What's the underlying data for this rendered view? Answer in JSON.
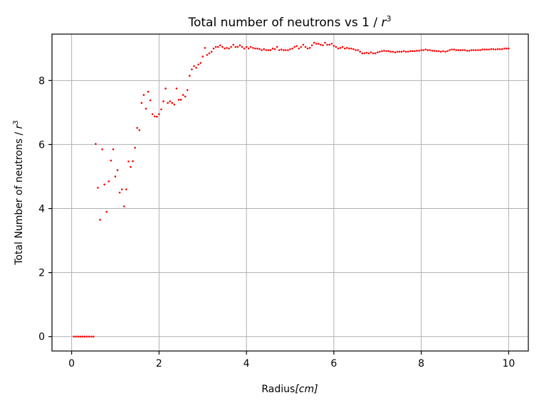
{
  "chart_data": {
    "type": "scatter",
    "title_prefix": "Total number of neutrons vs 1 / ",
    "title_var": "r",
    "title_exp": "3",
    "xlabel_prefix": "Radius",
    "xlabel_unit": "[cm]",
    "ylabel_prefix": "Total Number of neutrons / ",
    "ylabel_var": "r",
    "ylabel_exp": "3",
    "xlim": [
      -0.45,
      10.45
    ],
    "ylim": [
      -0.45,
      9.45
    ],
    "xticks": [
      0,
      2,
      4,
      6,
      8,
      10
    ],
    "xtick_labels": [
      "0",
      "2",
      "4",
      "6",
      "8",
      "10"
    ],
    "yticks": [
      0,
      2,
      4,
      6,
      8
    ],
    "ytick_labels": [
      "0",
      "2",
      "4",
      "6",
      "8"
    ],
    "grid": true,
    "series": [
      {
        "color": "#ff0000",
        "points": [
          [
            0.05,
            0
          ],
          [
            0.1,
            0
          ],
          [
            0.15,
            0
          ],
          [
            0.2,
            0
          ],
          [
            0.25,
            0
          ],
          [
            0.3,
            0
          ],
          [
            0.35,
            0
          ],
          [
            0.4,
            0
          ],
          [
            0.45,
            0
          ],
          [
            0.5,
            0
          ],
          [
            0.55,
            6.02
          ],
          [
            0.6,
            4.65
          ],
          [
            0.65,
            3.65
          ],
          [
            0.7,
            5.85
          ],
          [
            0.75,
            4.75
          ],
          [
            0.8,
            3.9
          ],
          [
            0.85,
            4.85
          ],
          [
            0.9,
            5.5
          ],
          [
            0.95,
            5.85
          ],
          [
            1.0,
            5.0
          ],
          [
            1.05,
            5.2
          ],
          [
            1.1,
            4.5
          ],
          [
            1.15,
            4.6
          ],
          [
            1.2,
            4.07
          ],
          [
            1.25,
            4.6
          ],
          [
            1.3,
            5.47
          ],
          [
            1.35,
            5.3
          ],
          [
            1.4,
            5.48
          ],
          [
            1.45,
            5.9
          ],
          [
            1.5,
            6.52
          ],
          [
            1.55,
            6.45
          ],
          [
            1.6,
            7.3
          ],
          [
            1.65,
            7.55
          ],
          [
            1.7,
            7.12
          ],
          [
            1.75,
            7.65
          ],
          [
            1.8,
            7.38
          ],
          [
            1.85,
            6.95
          ],
          [
            1.9,
            6.88
          ],
          [
            1.95,
            6.87
          ],
          [
            2.0,
            6.95
          ],
          [
            2.05,
            7.1
          ],
          [
            2.1,
            7.35
          ],
          [
            2.15,
            7.75
          ],
          [
            2.2,
            7.3
          ],
          [
            2.25,
            7.35
          ],
          [
            2.3,
            7.3
          ],
          [
            2.35,
            7.25
          ],
          [
            2.4,
            7.75
          ],
          [
            2.45,
            7.4
          ],
          [
            2.5,
            7.4
          ],
          [
            2.55,
            7.55
          ],
          [
            2.6,
            7.5
          ],
          [
            2.65,
            7.7
          ],
          [
            2.7,
            8.15
          ],
          [
            2.75,
            8.35
          ],
          [
            2.8,
            8.45
          ],
          [
            2.85,
            8.4
          ],
          [
            2.9,
            8.5
          ],
          [
            2.95,
            8.55
          ],
          [
            3.0,
            8.75
          ],
          [
            3.05,
            9.02
          ],
          [
            3.1,
            8.8
          ],
          [
            3.15,
            8.85
          ],
          [
            3.2,
            8.9
          ],
          [
            3.25,
            9.0
          ],
          [
            3.3,
            9.05
          ],
          [
            3.35,
            9.05
          ],
          [
            3.4,
            9.1
          ],
          [
            3.45,
            9.05
          ],
          [
            3.5,
            9.0
          ],
          [
            3.55,
            9.02
          ],
          [
            3.6,
            9.0
          ],
          [
            3.65,
            9.05
          ],
          [
            3.7,
            9.12
          ],
          [
            3.75,
            9.05
          ],
          [
            3.8,
            9.05
          ],
          [
            3.85,
            9.1
          ],
          [
            3.9,
            9.05
          ],
          [
            3.95,
            9.0
          ],
          [
            4.0,
            9.05
          ],
          [
            4.05,
            9.0
          ],
          [
            4.1,
            9.05
          ],
          [
            4.15,
            9.02
          ],
          [
            4.2,
            9.0
          ],
          [
            4.25,
            9.0
          ],
          [
            4.3,
            8.98
          ],
          [
            4.35,
            8.95
          ],
          [
            4.4,
            8.98
          ],
          [
            4.45,
            8.95
          ],
          [
            4.5,
            8.95
          ],
          [
            4.55,
            8.95
          ],
          [
            4.6,
            9.0
          ],
          [
            4.65,
            8.98
          ],
          [
            4.7,
            9.05
          ],
          [
            4.75,
            8.95
          ],
          [
            4.8,
            8.97
          ],
          [
            4.85,
            8.95
          ],
          [
            4.9,
            8.95
          ],
          [
            4.95,
            8.95
          ],
          [
            5.0,
            8.98
          ],
          [
            5.05,
            9.0
          ],
          [
            5.1,
            9.05
          ],
          [
            5.15,
            9.08
          ],
          [
            5.2,
            9.0
          ],
          [
            5.25,
            9.05
          ],
          [
            5.3,
            9.12
          ],
          [
            5.35,
            9.05
          ],
          [
            5.4,
            9.0
          ],
          [
            5.45,
            9.02
          ],
          [
            5.5,
            9.1
          ],
          [
            5.55,
            9.18
          ],
          [
            5.6,
            9.15
          ],
          [
            5.65,
            9.15
          ],
          [
            5.7,
            9.12
          ],
          [
            5.75,
            9.1
          ],
          [
            5.8,
            9.18
          ],
          [
            5.85,
            9.12
          ],
          [
            5.9,
            9.12
          ],
          [
            5.95,
            9.15
          ],
          [
            6.0,
            9.08
          ],
          [
            6.05,
            9.05
          ],
          [
            6.1,
            9.0
          ],
          [
            6.15,
            9.02
          ],
          [
            6.2,
            9.05
          ],
          [
            6.25,
            9.0
          ],
          [
            6.3,
            9.02
          ],
          [
            6.35,
            9.0
          ],
          [
            6.4,
            9.0
          ],
          [
            6.45,
            8.98
          ],
          [
            6.5,
            8.95
          ],
          [
            6.55,
            8.95
          ],
          [
            6.6,
            8.9
          ],
          [
            6.65,
            8.85
          ],
          [
            6.7,
            8.85
          ],
          [
            6.75,
            8.87
          ],
          [
            6.8,
            8.85
          ],
          [
            6.85,
            8.88
          ],
          [
            6.9,
            8.85
          ],
          [
            6.95,
            8.85
          ],
          [
            7.0,
            8.88
          ],
          [
            7.05,
            8.9
          ],
          [
            7.1,
            8.92
          ],
          [
            7.15,
            8.93
          ],
          [
            7.2,
            8.92
          ],
          [
            7.25,
            8.92
          ],
          [
            7.3,
            8.9
          ],
          [
            7.35,
            8.9
          ],
          [
            7.4,
            8.88
          ],
          [
            7.45,
            8.9
          ],
          [
            7.5,
            8.9
          ],
          [
            7.55,
            8.9
          ],
          [
            7.6,
            8.92
          ],
          [
            7.65,
            8.9
          ],
          [
            7.7,
            8.9
          ],
          [
            7.75,
            8.92
          ],
          [
            7.8,
            8.92
          ],
          [
            7.85,
            8.92
          ],
          [
            7.9,
            8.93
          ],
          [
            7.95,
            8.93
          ],
          [
            8.0,
            8.95
          ],
          [
            8.05,
            8.95
          ],
          [
            8.1,
            8.97
          ],
          [
            8.15,
            8.95
          ],
          [
            8.2,
            8.95
          ],
          [
            8.25,
            8.93
          ],
          [
            8.3,
            8.93
          ],
          [
            8.35,
            8.92
          ],
          [
            8.4,
            8.92
          ],
          [
            8.45,
            8.9
          ],
          [
            8.5,
            8.92
          ],
          [
            8.55,
            8.9
          ],
          [
            8.6,
            8.92
          ],
          [
            8.65,
            8.95
          ],
          [
            8.7,
            8.97
          ],
          [
            8.75,
            8.97
          ],
          [
            8.8,
            8.95
          ],
          [
            8.85,
            8.95
          ],
          [
            8.9,
            8.95
          ],
          [
            8.95,
            8.95
          ],
          [
            9.0,
            8.95
          ],
          [
            9.05,
            8.93
          ],
          [
            9.1,
            8.93
          ],
          [
            9.15,
            8.95
          ],
          [
            9.2,
            8.95
          ],
          [
            9.25,
            8.95
          ],
          [
            9.3,
            8.95
          ],
          [
            9.35,
            8.95
          ],
          [
            9.4,
            8.97
          ],
          [
            9.45,
            8.97
          ],
          [
            9.5,
            8.97
          ],
          [
            9.55,
            8.97
          ],
          [
            9.6,
            8.98
          ],
          [
            9.65,
            8.98
          ],
          [
            9.7,
            8.97
          ],
          [
            9.75,
            8.98
          ],
          [
            9.8,
            8.98
          ],
          [
            9.85,
            8.98
          ],
          [
            9.9,
            9.0
          ],
          [
            9.95,
            9.0
          ],
          [
            10.0,
            9.0
          ]
        ]
      }
    ]
  }
}
